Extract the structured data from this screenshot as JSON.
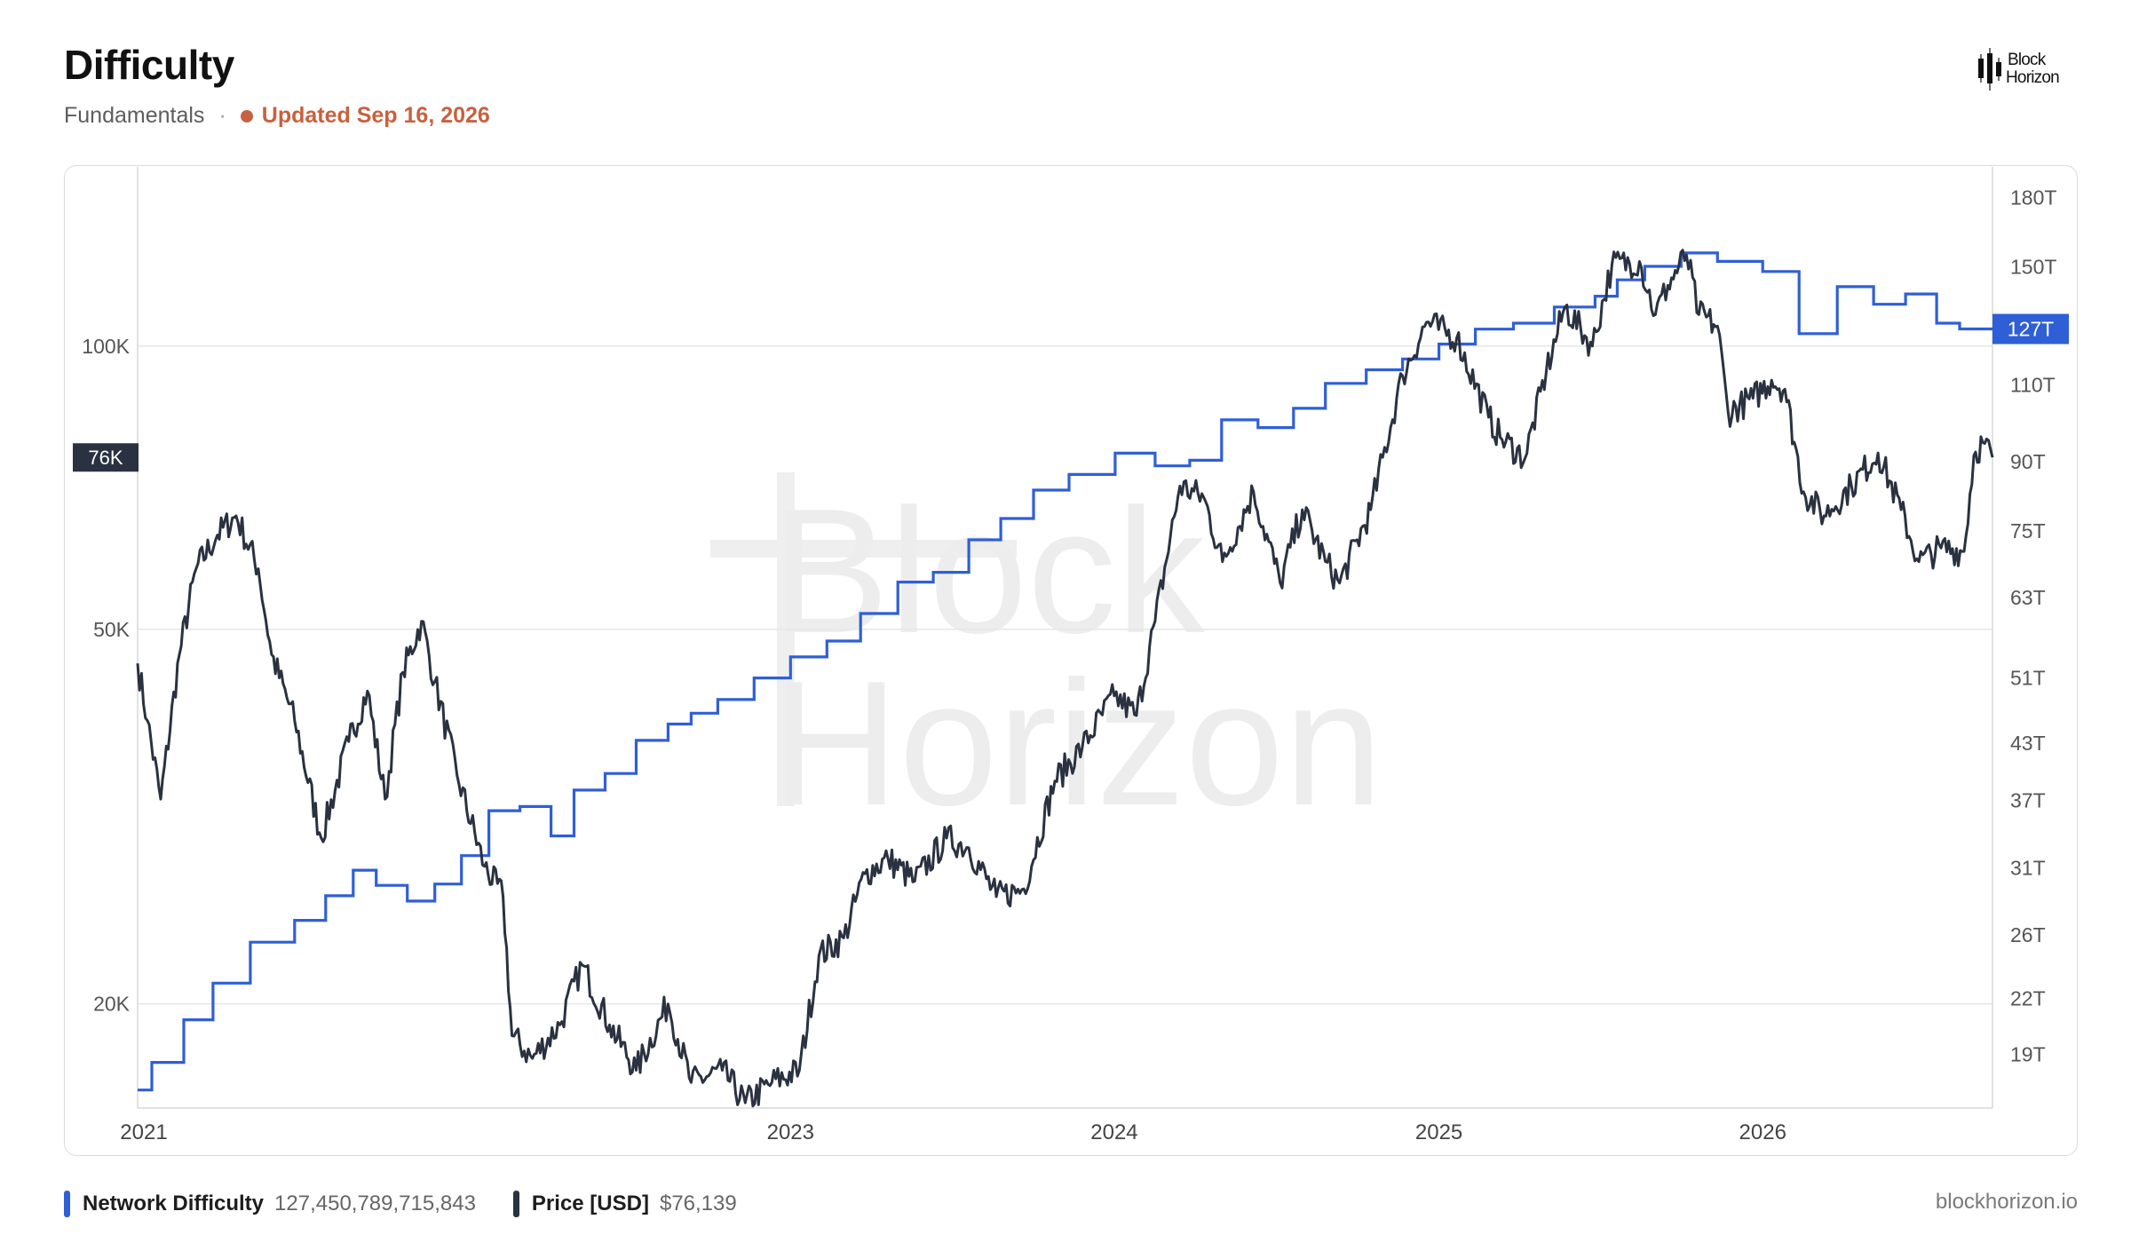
{
  "header": {
    "title": "Difficulty",
    "section": "Fundamentals",
    "separator": "·",
    "updated": "Updated Sep 16, 2026"
  },
  "logo": {
    "line1": "Block",
    "line2": "Horizon"
  },
  "watermark": {
    "line1": "Block",
    "line2": "Horizon"
  },
  "footer": {
    "site": "blockhorizon.io"
  },
  "colors": {
    "difficulty": "#2f5fd6",
    "price": "#2a3140",
    "accent": "#c8613f"
  },
  "chart_data": {
    "type": "line",
    "x_axis": {
      "type": "date",
      "range": [
        "2020-12-25",
        "2026-09-16"
      ],
      "tick_labels": [
        "2021",
        "2023",
        "2024",
        "2025",
        "2026"
      ],
      "tick_dates": [
        "2021-01-01",
        "2022-12-31",
        "2023-12-31",
        "2024-12-31",
        "2025-12-31"
      ]
    },
    "y_left": {
      "scale": "log",
      "range": [
        15500,
        155000
      ],
      "ticks": [
        20000,
        50000,
        100000
      ],
      "tick_labels": [
        "20K",
        "50K",
        "100K"
      ],
      "current_label": "76K",
      "current_value": 76139
    },
    "y_right": {
      "scale": "log",
      "range": [
        16.5,
        195
      ],
      "ticks": [
        19,
        22,
        26,
        31,
        37,
        43,
        51,
        63,
        75,
        90,
        110,
        150,
        180
      ],
      "tick_labels": [
        "19T",
        "22T",
        "26T",
        "31T",
        "37T",
        "43T",
        "51T",
        "63T",
        "75T",
        "90T",
        "110T",
        "150T",
        "180T"
      ],
      "current_label": "127T",
      "current_value": 127.45
    },
    "grid": "horizontal, left-axis ticks",
    "legend_placement": "bottom-left",
    "series": [
      {
        "name": "Network Difficulty",
        "axis": "right",
        "unit": "T",
        "style": "step",
        "latest_value": "127,450,789,715,843",
        "points": [
          [
            "2020-12-25",
            17.3
          ],
          [
            "2021-01-10",
            18.6
          ],
          [
            "2021-02-15",
            20.8
          ],
          [
            "2021-03-20",
            22.9
          ],
          [
            "2021-05-01",
            25.5
          ],
          [
            "2021-06-20",
            27.0
          ],
          [
            "2021-07-25",
            28.8
          ],
          [
            "2021-08-25",
            30.8
          ],
          [
            "2021-09-20",
            29.6
          ],
          [
            "2021-10-25",
            28.4
          ],
          [
            "2021-11-25",
            29.7
          ],
          [
            "2021-12-25",
            32.0
          ],
          [
            "2022-01-25",
            36.0
          ],
          [
            "2022-03-01",
            36.4
          ],
          [
            "2022-04-05",
            33.7
          ],
          [
            "2022-05-01",
            38.0
          ],
          [
            "2022-06-05",
            39.7
          ],
          [
            "2022-07-10",
            43.3
          ],
          [
            "2022-08-15",
            45.2
          ],
          [
            "2022-09-10",
            46.5
          ],
          [
            "2022-10-10",
            48.2
          ],
          [
            "2022-11-20",
            51.0
          ],
          [
            "2022-12-31",
            53.9
          ],
          [
            "2023-02-10",
            56.2
          ],
          [
            "2023-03-20",
            60.4
          ],
          [
            "2023-05-01",
            65.6
          ],
          [
            "2023-06-10",
            67.3
          ],
          [
            "2023-07-20",
            73.3
          ],
          [
            "2023-08-25",
            77.5
          ],
          [
            "2023-10-01",
            83.5
          ],
          [
            "2023-11-10",
            87.0
          ],
          [
            "2024-01-01",
            92.0
          ],
          [
            "2024-02-15",
            89.0
          ],
          [
            "2024-03-25",
            90.3
          ],
          [
            "2024-04-30",
            100.4
          ],
          [
            "2024-06-10",
            98.4
          ],
          [
            "2024-07-20",
            103.5
          ],
          [
            "2024-08-25",
            110.5
          ],
          [
            "2024-10-10",
            114.5
          ],
          [
            "2024-11-20",
            117.8
          ],
          [
            "2024-12-31",
            122.5
          ],
          [
            "2025-02-10",
            127.4
          ],
          [
            "2025-03-25",
            129.4
          ],
          [
            "2025-05-10",
            135.0
          ],
          [
            "2025-06-25",
            138.9
          ],
          [
            "2025-07-20",
            145.0
          ],
          [
            "2025-08-20",
            150.2
          ],
          [
            "2025-09-30",
            155.6
          ],
          [
            "2025-11-10",
            152.2
          ],
          [
            "2025-12-31",
            148.2
          ],
          [
            "2026-02-10",
            125.9
          ],
          [
            "2026-03-25",
            142.4
          ],
          [
            "2026-05-05",
            136.0
          ],
          [
            "2026-06-10",
            139.7
          ],
          [
            "2026-07-15",
            129.4
          ],
          [
            "2026-08-10",
            127.45
          ],
          [
            "2026-09-16",
            127.45
          ]
        ]
      },
      {
        "name": "Price [USD]",
        "axis": "left",
        "unit": "USD",
        "style": "line",
        "latest_value": "$76,139",
        "points": [
          [
            "2020-12-25",
            46000
          ],
          [
            "2021-01-05",
            40000
          ],
          [
            "2021-01-20",
            33000
          ],
          [
            "2021-02-10",
            47000
          ],
          [
            "2021-03-01",
            58000
          ],
          [
            "2021-03-25",
            63000
          ],
          [
            "2021-04-15",
            66000
          ],
          [
            "2021-05-10",
            58000
          ],
          [
            "2021-05-25",
            47000
          ],
          [
            "2021-06-20",
            40000
          ],
          [
            "2021-07-20",
            30000
          ],
          [
            "2021-08-20",
            38000
          ],
          [
            "2021-09-10",
            43000
          ],
          [
            "2021-09-30",
            33000
          ],
          [
            "2021-10-20",
            45000
          ],
          [
            "2021-11-10",
            51000
          ],
          [
            "2021-11-25",
            44000
          ],
          [
            "2021-12-20",
            35000
          ],
          [
            "2022-01-20",
            28000
          ],
          [
            "2022-02-10",
            26000
          ],
          [
            "2022-02-20",
            18500
          ],
          [
            "2022-03-15",
            17500
          ],
          [
            "2022-04-15",
            19000
          ],
          [
            "2022-05-10",
            22000
          ],
          [
            "2022-06-10",
            19000
          ],
          [
            "2022-07-10",
            17000
          ],
          [
            "2022-08-15",
            20000
          ],
          [
            "2022-09-10",
            16500
          ],
          [
            "2022-10-15",
            17000
          ],
          [
            "2022-11-10",
            15700
          ],
          [
            "2022-12-10",
            16500
          ],
          [
            "2023-01-10",
            17000
          ],
          [
            "2023-02-01",
            22500
          ],
          [
            "2023-03-01",
            23500
          ],
          [
            "2023-03-25",
            27500
          ],
          [
            "2023-04-20",
            28500
          ],
          [
            "2023-05-20",
            27000
          ],
          [
            "2023-06-25",
            30000
          ],
          [
            "2023-07-20",
            29300
          ],
          [
            "2023-08-20",
            26000
          ],
          [
            "2023-09-20",
            26500
          ],
          [
            "2023-10-25",
            34500
          ],
          [
            "2023-11-25",
            37500
          ],
          [
            "2023-12-31",
            42500
          ],
          [
            "2024-01-25",
            40500
          ],
          [
            "2024-02-15",
            51000
          ],
          [
            "2024-03-14",
            71000
          ],
          [
            "2024-04-10",
            69000
          ],
          [
            "2024-05-01",
            59000
          ],
          [
            "2024-06-05",
            70000
          ],
          [
            "2024-07-05",
            56000
          ],
          [
            "2024-07-30",
            67000
          ],
          [
            "2024-08-25",
            59000
          ],
          [
            "2024-09-10",
            56000
          ],
          [
            "2024-10-15",
            67000
          ],
          [
            "2024-11-20",
            93000
          ],
          [
            "2024-12-17",
            106000
          ],
          [
            "2025-01-20",
            102000
          ],
          [
            "2025-02-25",
            84000
          ],
          [
            "2025-03-10",
            80000
          ],
          [
            "2025-04-07",
            76000
          ],
          [
            "2025-05-01",
            94000
          ],
          [
            "2025-05-22",
            110000
          ],
          [
            "2025-06-22",
            100000
          ],
          [
            "2025-07-14",
            122000
          ],
          [
            "2025-08-14",
            123000
          ],
          [
            "2025-09-01",
            108000
          ],
          [
            "2025-09-15",
            116000
          ],
          [
            "2025-10-06",
            125000
          ],
          [
            "2025-10-20",
            108000
          ],
          [
            "2025-11-10",
            105000
          ],
          [
            "2025-11-22",
            85000
          ],
          [
            "2025-12-20",
            88000
          ],
          [
            "2026-01-10",
            92000
          ],
          [
            "2026-01-25",
            90000
          ],
          [
            "2026-02-15",
            70000
          ],
          [
            "2026-03-10",
            66000
          ],
          [
            "2026-04-10",
            71000
          ],
          [
            "2026-05-10",
            77000
          ],
          [
            "2026-06-05",
            67000
          ],
          [
            "2026-06-25",
            59000
          ],
          [
            "2026-07-20",
            61000
          ],
          [
            "2026-08-15",
            60500
          ],
          [
            "2026-08-26",
            76500
          ],
          [
            "2026-09-05",
            79000
          ],
          [
            "2026-09-16",
            76139
          ]
        ]
      }
    ]
  }
}
